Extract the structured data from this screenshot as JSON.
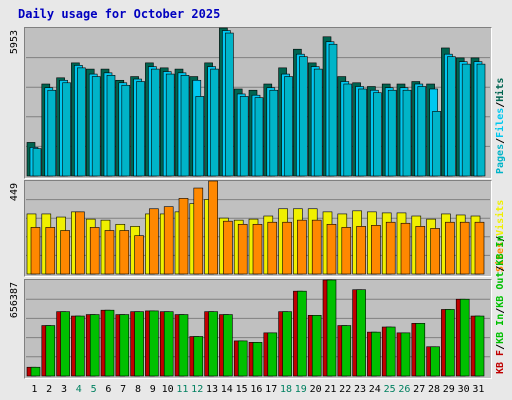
{
  "title": "Daily usage for October 2025",
  "colors": {
    "background": "#e8e8e8",
    "panel": "#c0c0c0",
    "grid": "#808080",
    "hits": "#006450",
    "files": "#00c8f0",
    "pages": "#00b4c8",
    "visits": "#f0f000",
    "sites": "#ff8800",
    "kb_in": "#00c000",
    "kb_out": "#c00000",
    "title": "#0000c0",
    "weekend_label": "#008060",
    "weekday_label": "#000000"
  },
  "chart_data": [
    {
      "type": "bar",
      "name": "hits-files-pages",
      "x": [
        1,
        2,
        3,
        4,
        5,
        6,
        7,
        8,
        9,
        10,
        11,
        12,
        13,
        14,
        15,
        16,
        17,
        18,
        19,
        20,
        21,
        22,
        23,
        24,
        25,
        26,
        27,
        28,
        29,
        30,
        31
      ],
      "ylabel_max": "5953",
      "ylim": [
        0,
        5953
      ],
      "series": [
        {
          "name": "Hits",
          "values": [
            1350,
            3700,
            3950,
            4550,
            4300,
            4300,
            3850,
            4000,
            4550,
            4350,
            4300,
            4000,
            4550,
            5953,
            3500,
            3450,
            3700,
            4350,
            5100,
            4550,
            5600,
            4000,
            3750,
            3600,
            3700,
            3700,
            3800,
            3700,
            5150,
            4750,
            4750
          ]
        },
        {
          "name": "Files",
          "values": [
            1150,
            3550,
            3850,
            4450,
            4100,
            4150,
            3750,
            3900,
            4400,
            4200,
            4150,
            3850,
            4400,
            5850,
            3300,
            3250,
            3550,
            4100,
            4900,
            4400,
            5400,
            3800,
            3600,
            3450,
            3550,
            3550,
            3700,
            3500,
            4900,
            4600,
            4600
          ]
        },
        {
          "name": "Pages",
          "values": [
            1100,
            3450,
            3750,
            4350,
            4000,
            4050,
            3650,
            3800,
            4300,
            4100,
            4050,
            3200,
            4300,
            5750,
            3200,
            3150,
            3450,
            4000,
            4800,
            4300,
            5300,
            3700,
            3500,
            3350,
            3450,
            3450,
            3600,
            2600,
            4800,
            4500,
            4500
          ]
        }
      ]
    },
    {
      "type": "bar",
      "name": "visits-sites",
      "x": [
        1,
        2,
        3,
        4,
        5,
        6,
        7,
        8,
        9,
        10,
        11,
        12,
        13,
        14,
        15,
        16,
        17,
        18,
        19,
        20,
        21,
        22,
        23,
        24,
        25,
        26,
        27,
        28,
        29,
        30,
        31
      ],
      "ylabel_max": "449",
      "ylim": [
        0,
        449
      ],
      "series": [
        {
          "name": "Visits",
          "values": [
            290,
            290,
            275,
            300,
            265,
            260,
            240,
            230,
            290,
            290,
            300,
            340,
            360,
            270,
            260,
            265,
            280,
            315,
            315,
            315,
            300,
            290,
            305,
            300,
            295,
            295,
            280,
            265,
            290,
            285,
            280
          ]
        },
        {
          "name": "Sites",
          "values": [
            225,
            225,
            210,
            300,
            225,
            210,
            210,
            185,
            315,
            325,
            365,
            415,
            449,
            255,
            240,
            240,
            250,
            250,
            260,
            260,
            240,
            225,
            230,
            235,
            250,
            245,
            230,
            220,
            250,
            250,
            250
          ]
        }
      ]
    },
    {
      "type": "bar",
      "name": "kb-in-out",
      "x": [
        1,
        2,
        3,
        4,
        5,
        6,
        7,
        8,
        9,
        10,
        11,
        12,
        13,
        14,
        15,
        16,
        17,
        18,
        19,
        20,
        21,
        22,
        23,
        24,
        25,
        26,
        27,
        28,
        29,
        30,
        31
      ],
      "ylabel_max": "656387",
      "ylim": [
        0,
        656387
      ],
      "series": [
        {
          "name": "KB In",
          "values": [
            60000,
            345000,
            440000,
            410000,
            420000,
            450000,
            420000,
            440000,
            445000,
            440000,
            420000,
            270000,
            440000,
            420000,
            240000,
            230000,
            295000,
            440000,
            580000,
            415000,
            656387,
            345000,
            590000,
            300000,
            335000,
            295000,
            360000,
            200000,
            455000,
            525000,
            410000
          ]
        },
        {
          "name": "KB Out",
          "values": [
            60000,
            345000,
            440000,
            410000,
            420000,
            450000,
            420000,
            440000,
            445000,
            440000,
            420000,
            270000,
            440000,
            420000,
            240000,
            230000,
            295000,
            440000,
            580000,
            415000,
            656387,
            345000,
            590000,
            300000,
            335000,
            295000,
            360000,
            200000,
            455000,
            525000,
            410000
          ]
        }
      ]
    }
  ],
  "legends": [
    [
      {
        "text": "Pages",
        "color": "#00b4c8"
      },
      {
        "text": "/",
        "color": "#000000"
      },
      {
        "text": "Files",
        "color": "#00c8f0"
      },
      {
        "text": "/",
        "color": "#000000"
      },
      {
        "text": "Hits",
        "color": "#006450"
      }
    ],
    [
      {
        "text": "Sites",
        "color": "#ff8800"
      },
      {
        "text": "/",
        "color": "#000000"
      },
      {
        "text": "Visits",
        "color": "#f0f000"
      }
    ],
    [
      {
        "text": "KB F",
        "color": "#c00000"
      },
      {
        "text": "/",
        "color": "#000000"
      },
      {
        "text": "KB In",
        "color": "#00c000"
      },
      {
        "text": "/",
        "color": "#000000"
      },
      {
        "text": "KB Out",
        "color": "#00c000"
      },
      {
        "text": "/",
        "color": "#000000"
      },
      {
        "text": "KB In",
        "color": "#00c000"
      }
    ]
  ],
  "day_labels": [
    "1",
    "2",
    "3",
    "4",
    "5",
    "6",
    "7",
    "8",
    "9",
    "10",
    "11",
    "12",
    "13",
    "14",
    "15",
    "16",
    "17",
    "18",
    "19",
    "20",
    "21",
    "22",
    "23",
    "24",
    "25",
    "26",
    "27",
    "28",
    "29",
    "30",
    "31"
  ],
  "weekend_days": [
    4,
    5,
    11,
    12,
    18,
    19,
    25,
    26
  ]
}
